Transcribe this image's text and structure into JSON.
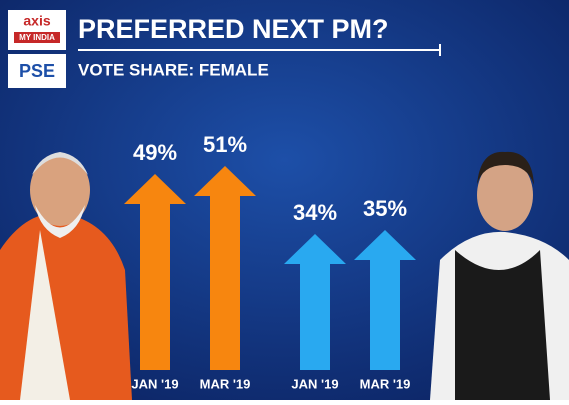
{
  "chart_data": {
    "type": "arrow-bar",
    "title": "PREFERRED NEXT PM?",
    "subtitle": "VOTE SHARE: FEMALE",
    "brand": "axis",
    "brand_sub": "MY INDIA",
    "brand_pse": "PSE",
    "categories": [
      "JAN '19",
      "MAR '19",
      "JAN '19",
      "MAR '19"
    ],
    "values": [
      49,
      51,
      34,
      35
    ],
    "value_labels": [
      "49%",
      "51%",
      "34%",
      "35%"
    ],
    "colors": [
      "#f7860f",
      "#f7860f",
      "#29a9f0",
      "#29a9f0"
    ]
  }
}
